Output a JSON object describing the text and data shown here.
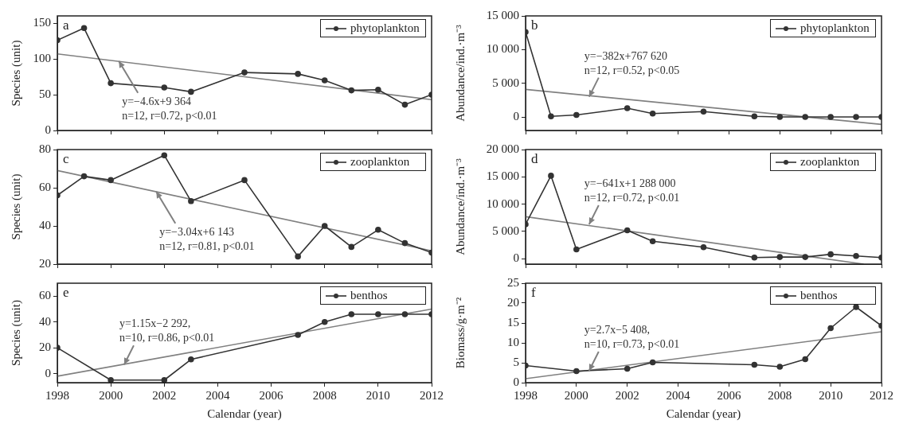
{
  "chart_data": [
    {
      "type": "line",
      "title": "a",
      "ylabel": "Species (unit)",
      "x": [
        1998,
        1999,
        2000,
        2002,
        2003,
        2005,
        2007,
        2008,
        2009,
        2010,
        2011,
        2012
      ],
      "xlim": [
        1998,
        2012
      ],
      "xticks": [
        1998,
        2000,
        2002,
        2004,
        2006,
        2008,
        2010,
        2012
      ],
      "ylim": [
        0,
        160
      ],
      "yticks": [
        0,
        50,
        100,
        150
      ],
      "tick_labels": "y",
      "legend": "top right",
      "marker": "circle",
      "grid": false,
      "series": [
        {
          "name": "phytoplankton",
          "color": "#333333",
          "values": [
            126,
            143,
            66,
            60,
            54,
            81,
            79,
            70,
            56,
            57,
            36,
            50
          ]
        },
        {
          "type": "line",
          "color": "#808080",
          "marker": "none",
          "x": [
            1998,
            2012
          ],
          "values": [
            107,
            43
          ]
        }
      ],
      "annotations": [
        {
          "text": "y=−4.6x+9 364\nn=12, r=0.72, p<0.01",
          "x": 2000.3,
          "y": 97
        }
      ]
    },
    {
      "type": "line",
      "title": "b",
      "ylabel": "Abundance/ind.·m⁻³",
      "x": [
        1998,
        1999,
        2000,
        2002,
        2003,
        2005,
        2007,
        2008,
        2009,
        2010,
        2011,
        2012
      ],
      "xlim": [
        1998,
        2012
      ],
      "xticks": [
        1998,
        2000,
        2002,
        2004,
        2006,
        2008,
        2010,
        2012
      ],
      "ylim": [
        -2000,
        15000
      ],
      "yticks": [
        {
          "value": 0,
          "label": "0"
        },
        {
          "value": 5000,
          "label": "5 000"
        },
        {
          "value": 10000,
          "label": "10 000"
        },
        {
          "value": 15000,
          "label": "15 000"
        }
      ],
      "tick_labels": "y",
      "legend": "top right",
      "marker": "circle",
      "grid": false,
      "series": [
        {
          "name": "phytoplankton",
          "color": "#333333",
          "values": [
            12600,
            100,
            300,
            1300,
            500,
            800,
            100,
            0,
            0,
            0,
            0,
            0
          ]
        },
        {
          "type": "line",
          "color": "#808080",
          "marker": "none",
          "x": [
            1998,
            2012
          ],
          "values": [
            4100,
            -1100
          ]
        }
      ],
      "annotations": [
        {
          "text": "y=−382x+767 620\nn=12, r=0.52, p<0.05",
          "x": 2000.5,
          "y": 3000
        }
      ]
    },
    {
      "type": "line",
      "title": "c",
      "ylabel": "Species (unit)",
      "x": [
        1998,
        1999,
        2000,
        2002,
        2003,
        2005,
        2007,
        2008,
        2009,
        2010,
        2011,
        2012
      ],
      "xlim": [
        1998,
        2012
      ],
      "xticks": [
        1998,
        2000,
        2002,
        2004,
        2006,
        2008,
        2010,
        2012
      ],
      "ylim": [
        20,
        80
      ],
      "yticks": [
        20,
        40,
        60,
        80
      ],
      "tick_labels": "y",
      "legend": "top right",
      "marker": "circle",
      "grid": false,
      "series": [
        {
          "name": "zooplankton",
          "color": "#333333",
          "values": [
            56,
            66,
            64,
            77,
            53,
            64,
            24,
            40,
            29,
            38,
            31,
            26
          ]
        },
        {
          "type": "line",
          "color": "#808080",
          "marker": "none",
          "x": [
            1998,
            2012
          ],
          "values": [
            69,
            27
          ]
        }
      ],
      "annotations": [
        {
          "text": "y=−3.04x+6 143\nn=12, r=0.81, p<0.01",
          "x": 2001.7,
          "y": 58
        }
      ]
    },
    {
      "type": "line",
      "title": "d",
      "ylabel": "Abundance/ind.·m⁻³",
      "x": [
        1998,
        1999,
        2000,
        2002,
        2003,
        2005,
        2007,
        2008,
        2009,
        2010,
        2011,
        2012
      ],
      "xlim": [
        1998,
        2012
      ],
      "xticks": [
        1998,
        2000,
        2002,
        2004,
        2006,
        2008,
        2010,
        2012
      ],
      "ylim": [
        -1000,
        20000
      ],
      "yticks": [
        {
          "value": 0,
          "label": "0"
        },
        {
          "value": 5000,
          "label": "5 000"
        },
        {
          "value": 10000,
          "label": "10 000"
        },
        {
          "value": 15000,
          "label": "15 000"
        },
        {
          "value": 20000,
          "label": "20 000"
        }
      ],
      "tick_labels": "y",
      "legend": "top right",
      "marker": "circle",
      "grid": false,
      "series": [
        {
          "name": "zooplankton",
          "color": "#333333",
          "values": [
            6300,
            15200,
            1700,
            5200,
            3200,
            2100,
            200,
            300,
            300,
            800,
            500,
            200
          ]
        },
        {
          "type": "line",
          "color": "#808080",
          "marker": "none",
          "x": [
            1998,
            2011.3
          ],
          "values": [
            7700,
            -1000
          ]
        }
      ],
      "annotations": [
        {
          "text": "y=−641x+1 288 000\nn=12, r=0.72, p<0.01",
          "x": 2000.5,
          "y": 6300
        }
      ]
    },
    {
      "type": "line",
      "title": "e",
      "xlabel": "Calendar (year)",
      "ylabel": "Species (unit)",
      "x": [
        1998,
        2000,
        2002,
        2003,
        2007,
        2008,
        2009,
        2010,
        2011,
        2012
      ],
      "xlim": [
        1998,
        2012
      ],
      "xticks": [
        1998,
        2000,
        2002,
        2004,
        2006,
        2008,
        2010,
        2012
      ],
      "ylim": [
        -7,
        70
      ],
      "yticks": [
        0,
        20,
        40,
        60
      ],
      "legend": "top right",
      "marker": "circle",
      "grid": false,
      "series": [
        {
          "name": "benthos",
          "color": "#333333",
          "values": [
            20,
            -5,
            -5,
            11,
            30,
            40,
            46,
            46,
            46,
            46
          ]
        },
        {
          "type": "line",
          "color": "#808080",
          "marker": "none",
          "x": [
            1998,
            2012
          ],
          "values": [
            -2,
            50
          ]
        }
      ],
      "annotations": [
        {
          "text": "y=1.15x−2 292,\nn=10, r=0.86, p<0.01",
          "x": 2000.5,
          "y": 7
        }
      ]
    },
    {
      "type": "line",
      "title": "f",
      "xlabel": "Calendar (year)",
      "ylabel": "Biomass/g·m⁻²",
      "x": [
        1998,
        2000,
        2002,
        2003,
        2007,
        2008,
        2009,
        2010,
        2011,
        2012
      ],
      "xlim": [
        1998,
        2012
      ],
      "xticks": [
        1998,
        2000,
        2002,
        2004,
        2006,
        2008,
        2010,
        2012
      ],
      "ylim": [
        0,
        25
      ],
      "yticks": [
        0,
        5,
        10,
        15,
        20,
        25
      ],
      "legend": "top right",
      "marker": "circle",
      "grid": false,
      "series": [
        {
          "name": "benthos",
          "color": "#333333",
          "values": [
            4.3,
            2.9,
            3.5,
            5.1,
            4.5,
            4.0,
            5.9,
            13.7,
            19.0,
            14.3
          ]
        },
        {
          "type": "line",
          "color": "#808080",
          "marker": "none",
          "x": [
            1998,
            2012
          ],
          "values": [
            1.0,
            12.8
          ]
        }
      ],
      "annotations": [
        {
          "text": "y=2.7x−5 408,\nn=10, r=0.73, p<0.01",
          "x": 2000.5,
          "y": 3
        }
      ]
    }
  ]
}
